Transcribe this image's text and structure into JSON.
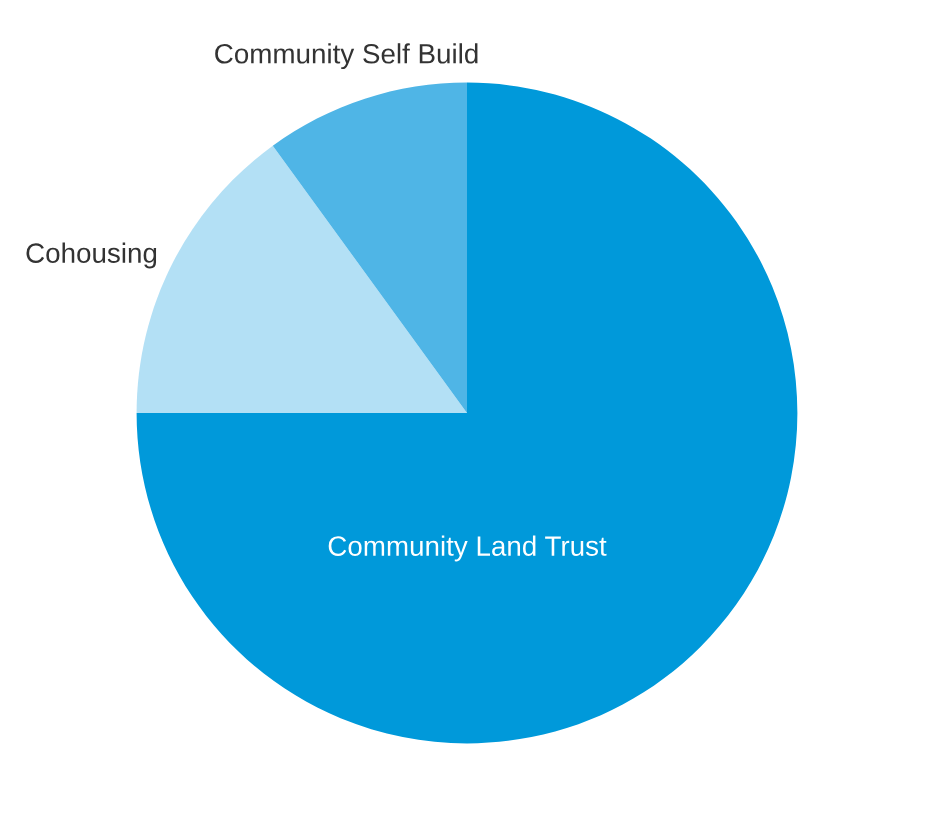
{
  "chart_data": {
    "type": "pie",
    "categories": [
      "Community Land Trust",
      "Cohousing",
      "Community Self Build"
    ],
    "values": [
      75,
      15,
      10
    ],
    "colors": [
      "#0099da",
      "#b3e0f5",
      "#4fb5e6"
    ]
  }
}
